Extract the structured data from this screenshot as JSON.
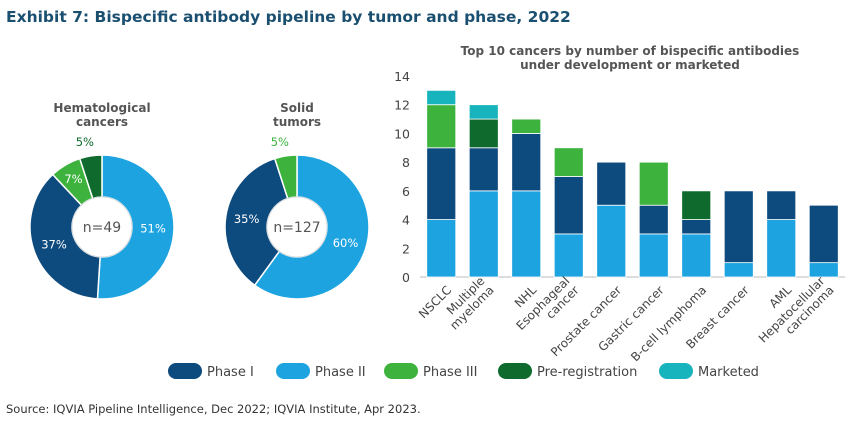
{
  "title": "Exhibit 7: Bispecific antibody pipeline by tumor and phase, 2022",
  "source": "Source: IQVIA Pipeline Intelligence, Dec 2022; IQVIA Institute, Apr 2023.",
  "colors": {
    "Phase I": "#0d4a7e",
    "Phase II": "#1da3e0",
    "Phase III": "#3db33d",
    "Pre-registration": "#0f6b2d",
    "Marketed": "#17b4bd",
    "donut_hole_border": "#d5d9dc",
    "title": "#1a4f70"
  },
  "chart_data": [
    {
      "type": "pie",
      "title": [
        "Hematological",
        "cancers"
      ],
      "center_label": "n=49",
      "slices": [
        {
          "phase": "Phase II",
          "value": 51,
          "label": "51%"
        },
        {
          "phase": "Phase I",
          "value": 37,
          "label": "37%"
        },
        {
          "phase": "Phase III",
          "value": 7,
          "label": "7%"
        },
        {
          "phase": "Pre-registration",
          "value": 5,
          "label": "5%"
        }
      ]
    },
    {
      "type": "pie",
      "title": [
        "Solid",
        "tumors"
      ],
      "center_label": "n=127",
      "slices": [
        {
          "phase": "Phase II",
          "value": 60,
          "label": "60%"
        },
        {
          "phase": "Phase I",
          "value": 35,
          "label": "35%"
        },
        {
          "phase": "Phase III",
          "value": 5,
          "label": "5%"
        }
      ]
    },
    {
      "type": "bar",
      "stacked": true,
      "title": [
        "Top 10 cancers by number of bispecific antibodies",
        "under development or marketed"
      ],
      "ylim": [
        0,
        14
      ],
      "yticks": [
        "0",
        "2",
        "4",
        "6",
        "8",
        "10",
        "12",
        "14"
      ],
      "categories": [
        [
          "NSCLC"
        ],
        [
          "Multiple",
          "myeloma"
        ],
        [
          "NHL"
        ],
        [
          "Esophageal",
          "cancer"
        ],
        [
          "Prostate cancer"
        ],
        [
          "Gastric cancer"
        ],
        [
          "B-cell lymphoma"
        ],
        [
          "Breast cancer"
        ],
        [
          "AML"
        ],
        [
          "Hepatocellular",
          "carcinoma"
        ]
      ],
      "series": [
        {
          "name": "Phase II",
          "values": [
            4,
            6,
            6,
            3,
            5,
            3,
            3,
            1,
            4,
            1
          ]
        },
        {
          "name": "Phase I",
          "values": [
            5,
            3,
            4,
            4,
            3,
            2,
            1,
            5,
            2,
            4
          ]
        },
        {
          "name": "Phase III",
          "values": [
            3,
            0,
            1,
            2,
            0,
            3,
            0,
            0,
            0,
            0
          ]
        },
        {
          "name": "Pre-registration",
          "values": [
            0,
            2,
            0,
            0,
            0,
            0,
            2,
            0,
            0,
            0
          ]
        },
        {
          "name": "Marketed",
          "values": [
            1,
            1,
            0,
            0,
            0,
            0,
            0,
            0,
            0,
            0
          ]
        }
      ]
    }
  ],
  "legend": [
    "Phase I",
    "Phase II",
    "Phase III",
    "Pre-registration",
    "Marketed"
  ]
}
